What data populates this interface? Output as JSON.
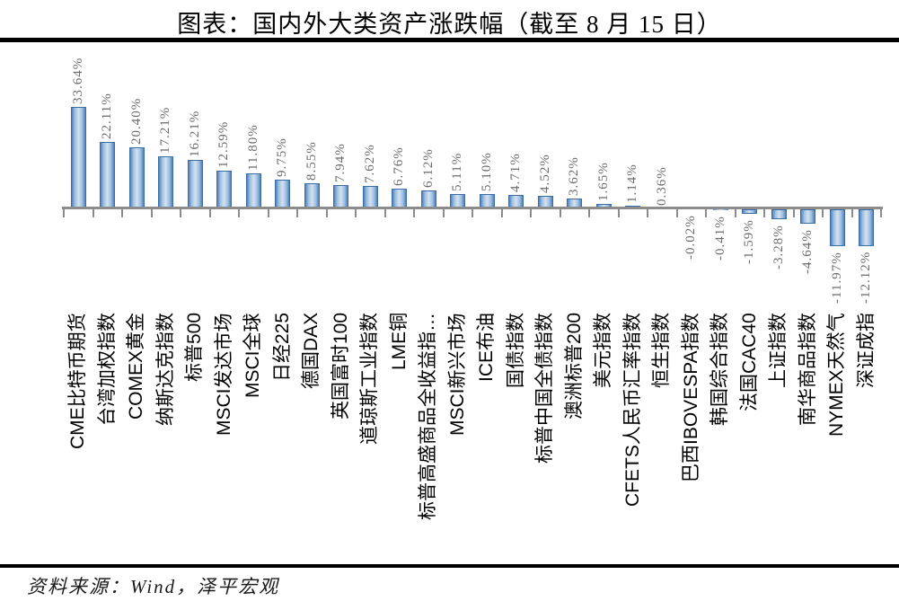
{
  "page": {
    "title": "图表：国内外大类资产涨跌幅（截至 8 月 15 日）",
    "source_note": "资料来源：Wind，泽平宏观"
  },
  "chart_data": {
    "type": "bar",
    "orientation": "vertical-columns",
    "title": "图表：国内外大类资产涨跌幅（截至 8 月 15 日）",
    "xlabel": "",
    "ylabel": "",
    "unit": "%",
    "ylim": [
      -14,
      36
    ],
    "grid": false,
    "legend": null,
    "value_label_rotation": 90,
    "category_label_rotation": 90,
    "categories": [
      "CME比特币期货",
      "台湾加权指数",
      "COMEX黄金",
      "纳斯达克指数",
      "标普500",
      "MSCI发达市场",
      "MSCI全球",
      "日经225",
      "德国DAX",
      "英国富时100",
      "道琼斯工业指数",
      "LME铜",
      "标普高盛商品全收益指…",
      "MSCI新兴市场",
      "ICE布油",
      "国债指数",
      "标普中国全债指数",
      "澳洲标普200",
      "美元指数",
      "CFETS人民币汇率指数",
      "恒生指数",
      "巴西IBOVESPA指数",
      "韩国综合指数",
      "法国CAC40",
      "上证指数",
      "南华商品指数",
      "NYMEX天然气",
      "深证成指"
    ],
    "values": [
      33.64,
      22.11,
      20.4,
      17.21,
      16.21,
      12.59,
      11.8,
      9.75,
      8.55,
      7.94,
      7.62,
      6.76,
      6.12,
      5.11,
      5.1,
      4.71,
      4.52,
      3.62,
      1.65,
      1.14,
      0.36,
      -0.02,
      -0.41,
      -1.59,
      -3.28,
      -4.64,
      -11.97,
      -12.12
    ],
    "value_labels": [
      "33.64%",
      "22.11%",
      "20.40%",
      "17.21%",
      "16.21%",
      "12.59%",
      "11.80%",
      "9.75%",
      "8.55%",
      "7.94%",
      "7.62%",
      "6.76%",
      "6.12%",
      "5.11%",
      "5.10%",
      "4.71%",
      "4.52%",
      "3.62%",
      "1.65%",
      "1.14%",
      "0.36%",
      "-0.02%",
      "-0.41%",
      "-1.59%",
      "-3.28%",
      "-4.64%",
      "-11.97%",
      "-12.12%"
    ],
    "colors": {
      "bar_fill_dark": "#4f81bd",
      "bar_fill_mid": "#9dbedf",
      "bar_fill_light": "#d3e2f1",
      "bar_border": "#3c6ea5",
      "axis": "#8c8c8c",
      "value_label": "#6b6b6b",
      "category_label": "#000000",
      "title": "#000000",
      "rule": "#000000"
    }
  }
}
